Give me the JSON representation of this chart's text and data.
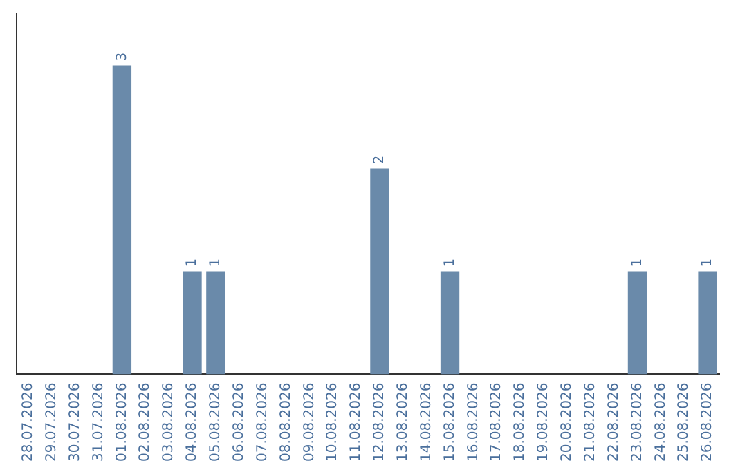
{
  "chart_data": {
    "type": "bar",
    "categories": [
      "28.07.2026",
      "29.07.2026",
      "30.07.2026",
      "31.07.2026",
      "01.08.2026",
      "02.08.2026",
      "03.08.2026",
      "04.08.2026",
      "05.08.2026",
      "06.08.2026",
      "07.08.2026",
      "08.08.2026",
      "09.08.2026",
      "10.08.2026",
      "11.08.2026",
      "12.08.2026",
      "13.08.2026",
      "14.08.2026",
      "15.08.2026",
      "16.08.2026",
      "17.08.2026",
      "18.08.2026",
      "19.08.2026",
      "20.08.2026",
      "21.08.2026",
      "22.08.2026",
      "23.08.2026",
      "24.08.2026",
      "25.08.2026",
      "26.08.2026"
    ],
    "values": [
      0,
      0,
      0,
      0,
      3,
      0,
      0,
      1,
      1,
      0,
      0,
      0,
      0,
      0,
      0,
      2,
      0,
      0,
      1,
      0,
      0,
      0,
      0,
      0,
      0,
      0,
      1,
      0,
      0,
      1
    ],
    "value_labels": [
      null,
      null,
      null,
      null,
      "3",
      null,
      null,
      "1",
      "1",
      null,
      null,
      null,
      null,
      null,
      null,
      "2",
      null,
      null,
      "1",
      null,
      null,
      null,
      null,
      null,
      null,
      null,
      "1",
      null,
      null,
      "1"
    ],
    "color": "#6a8aaa",
    "grid": false,
    "tick_labels": "x",
    "legend": false
  }
}
